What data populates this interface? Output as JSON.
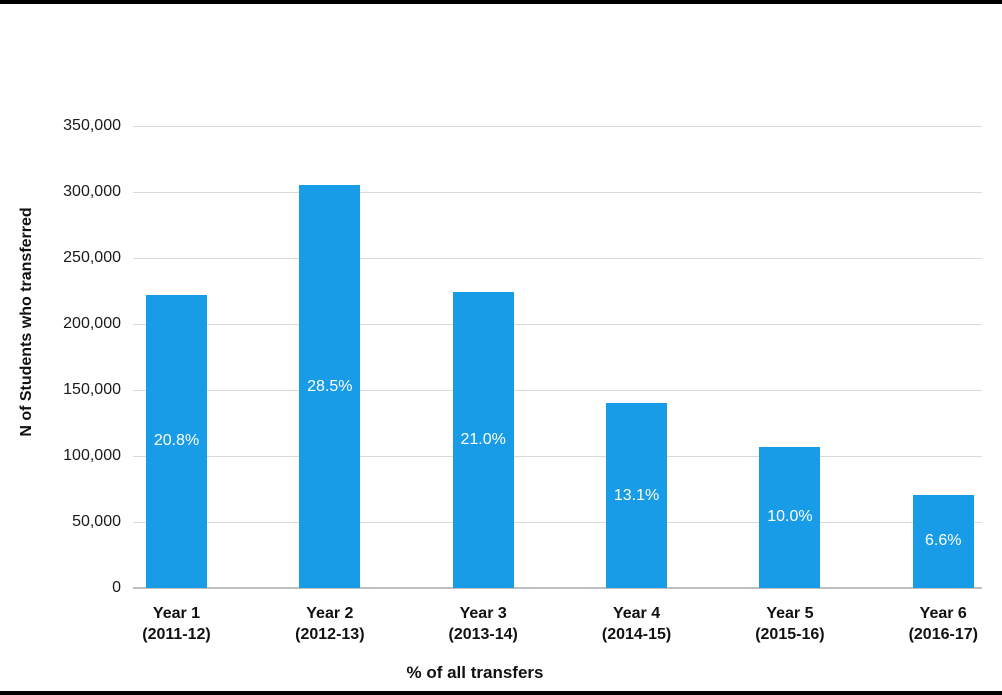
{
  "page": {
    "background": "#ffffff",
    "border_bar_color": "#000000"
  },
  "chart_data": {
    "type": "bar",
    "title": "",
    "xlabel": "% of all transfers",
    "ylabel": "N of Students who transferred",
    "categories": [
      "Year 1",
      "Year 2",
      "Year 3",
      "Year 4",
      "Year 5",
      "Year 6"
    ],
    "category_sublabels": [
      "(2011-12)",
      "(2012-13)",
      "(2013-14)",
      "(2014-15)",
      "(2015-16)",
      "(2016-17)"
    ],
    "values": [
      222000,
      305000,
      224000,
      140000,
      107000,
      70500
    ],
    "bar_labels": [
      "20.8%",
      "28.5%",
      "21.0%",
      "13.1%",
      "10.0%",
      "6.6%"
    ],
    "ylim": [
      0,
      350000
    ],
    "ytick_interval": 50000,
    "yticks": [
      "350,000",
      "300,000",
      "250,000",
      "200,000",
      "150,000",
      "100,000",
      "50,000",
      "0"
    ],
    "grid": true,
    "legend": false,
    "bar_color": "#189CE8",
    "bar_label_color": "#ffffff",
    "gridline_color": "#D9D9D9",
    "axis_line_color": "#BFBFBF",
    "text_color": "#1a1a1a"
  }
}
